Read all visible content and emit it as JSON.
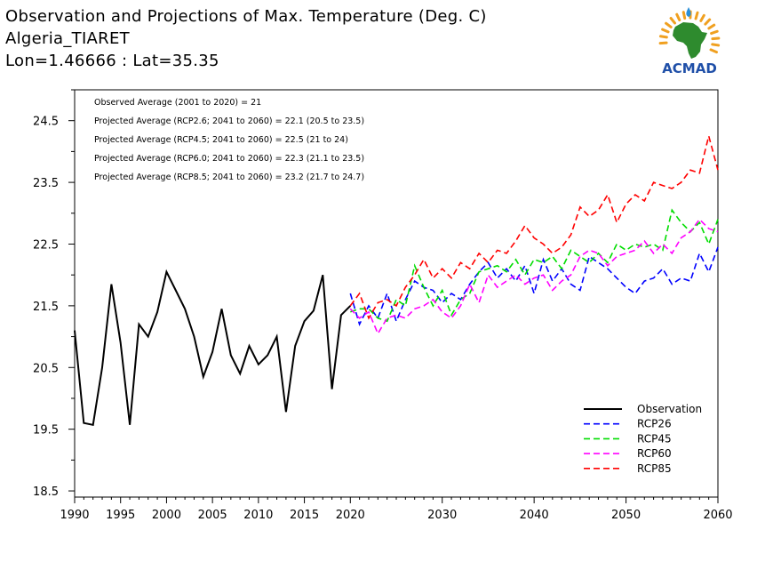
{
  "title": {
    "line1": "Observation and Projections of Max. Temperature (Deg. C)",
    "line2": "Algeria_TIARET",
    "line3": "Lon=1.46666 : Lat=35.35"
  },
  "logo": {
    "text": "ACMAD",
    "colors": {
      "africa": "#2e8b2e",
      "text": "#1f4fa8",
      "rays": "#f0a020",
      "drop": "#2a8fd8"
    }
  },
  "annotations": [
    "Observed Average (2001 to 2020) = 21",
    "Projected Average (RCP2.6; 2041 to 2060) = 22.1 (20.5 to 23.5)",
    "Projected Average (RCP4.5; 2041 to 2060) = 22.5 (21 to 24)",
    "Projected Average (RCP6.0; 2041 to 2060) = 22.3 (21.1 to 23.5)",
    "Projected Average (RCP8.5; 2041 to 2060) = 23.2 (21.7 to 24.7)"
  ],
  "chart_data": {
    "type": "line",
    "title": "Observation and Projections of Max. Temperature (Deg. C)",
    "xlabel": "",
    "ylabel": "",
    "xlim": [
      1990,
      2060
    ],
    "ylim": [
      18.4,
      25.0
    ],
    "x_ticks": [
      1990,
      1995,
      2000,
      2005,
      2010,
      2015,
      2020,
      2030,
      2040,
      2050,
      2060
    ],
    "y_ticks": [
      18.5,
      19.5,
      20.5,
      21.5,
      22.5,
      23.5,
      24.5
    ],
    "x_tick_labels": [
      "1990",
      "1995",
      "2000",
      "2005",
      "2010",
      "2015",
      "2020",
      "2030",
      "2040",
      "2050",
      "2060"
    ],
    "y_tick_labels": [
      "18.5",
      "19.5",
      "20.5",
      "21.5",
      "22.5",
      "23.5",
      "24.5"
    ],
    "legend_position": "bottom-right",
    "grid": false,
    "series": [
      {
        "name": "Observation",
        "color": "#000000",
        "dash": "solid",
        "x": [
          1990,
          1991,
          1992,
          1993,
          1994,
          1995,
          1996,
          1997,
          1998,
          1999,
          2000,
          2001,
          2002,
          2003,
          2004,
          2005,
          2006,
          2007,
          2008,
          2009,
          2010,
          2011,
          2012,
          2013,
          2014,
          2015,
          2016,
          2017,
          2018,
          2019,
          2020
        ],
        "y": [
          21.1,
          19.6,
          19.57,
          20.5,
          21.85,
          20.9,
          19.57,
          21.2,
          21.0,
          21.4,
          22.05,
          21.75,
          21.45,
          21.0,
          20.35,
          20.75,
          21.45,
          20.7,
          20.4,
          20.85,
          20.55,
          20.7,
          21.0,
          19.78,
          20.85,
          21.25,
          21.42,
          22.0,
          20.15,
          21.35,
          21.5
        ]
      },
      {
        "name": "RCP26",
        "color": "#0000ff",
        "dash": "dashed",
        "x": [
          2020,
          2021,
          2022,
          2023,
          2024,
          2025,
          2026,
          2027,
          2028,
          2029,
          2030,
          2031,
          2032,
          2033,
          2034,
          2035,
          2036,
          2037,
          2038,
          2039,
          2040,
          2041,
          2042,
          2043,
          2044,
          2045,
          2046,
          2047,
          2048,
          2049,
          2050,
          2051,
          2052,
          2053,
          2054,
          2055,
          2056,
          2057,
          2058,
          2059,
          2060
        ],
        "y": [
          21.7,
          21.2,
          21.5,
          21.3,
          21.7,
          21.25,
          21.6,
          21.9,
          21.8,
          21.75,
          21.55,
          21.7,
          21.6,
          21.85,
          22.05,
          22.2,
          21.95,
          22.1,
          21.9,
          22.15,
          21.7,
          22.25,
          21.9,
          22.1,
          21.85,
          21.75,
          22.3,
          22.2,
          22.1,
          21.95,
          21.8,
          21.7,
          21.9,
          21.95,
          22.1,
          21.85,
          21.95,
          21.9,
          22.35,
          22.05,
          22.45
        ]
      },
      {
        "name": "RCP45",
        "color": "#00dd00",
        "dash": "dashed",
        "x": [
          2020,
          2021,
          2022,
          2023,
          2024,
          2025,
          2026,
          2027,
          2028,
          2029,
          2030,
          2031,
          2032,
          2033,
          2034,
          2035,
          2036,
          2037,
          2038,
          2039,
          2040,
          2041,
          2042,
          2043,
          2044,
          2045,
          2046,
          2047,
          2048,
          2049,
          2050,
          2051,
          2052,
          2053,
          2054,
          2055,
          2056,
          2057,
          2058,
          2059,
          2060
        ],
        "y": [
          21.4,
          21.45,
          21.45,
          21.3,
          21.25,
          21.6,
          21.5,
          22.15,
          21.8,
          21.5,
          21.75,
          21.35,
          21.6,
          21.7,
          22.05,
          22.1,
          22.15,
          22.05,
          22.25,
          22.0,
          22.25,
          22.2,
          22.3,
          22.1,
          22.4,
          22.3,
          22.2,
          22.35,
          22.2,
          22.5,
          22.4,
          22.5,
          22.45,
          22.5,
          22.4,
          23.05,
          22.85,
          22.7,
          22.85,
          22.5,
          22.9
        ]
      },
      {
        "name": "RCP60",
        "color": "#ff00ff",
        "dash": "dashed",
        "x": [
          2020,
          2021,
          2022,
          2023,
          2024,
          2025,
          2026,
          2027,
          2028,
          2029,
          2030,
          2031,
          2032,
          2033,
          2034,
          2035,
          2036,
          2037,
          2038,
          2039,
          2040,
          2041,
          2042,
          2043,
          2044,
          2045,
          2046,
          2047,
          2048,
          2049,
          2050,
          2051,
          2052,
          2053,
          2054,
          2055,
          2056,
          2057,
          2058,
          2059,
          2060
        ],
        "y": [
          21.45,
          21.3,
          21.4,
          21.05,
          21.3,
          21.35,
          21.3,
          21.45,
          21.5,
          21.6,
          21.4,
          21.3,
          21.5,
          21.85,
          21.55,
          22.0,
          21.8,
          21.9,
          22.0,
          21.85,
          21.95,
          22.0,
          21.75,
          21.9,
          22.0,
          22.3,
          22.4,
          22.35,
          22.15,
          22.3,
          22.35,
          22.4,
          22.55,
          22.35,
          22.5,
          22.35,
          22.6,
          22.7,
          22.9,
          22.75,
          22.7
        ]
      },
      {
        "name": "RCP85",
        "color": "#ff0000",
        "dash": "dashed",
        "x": [
          2020,
          2021,
          2022,
          2023,
          2024,
          2025,
          2026,
          2027,
          2028,
          2029,
          2030,
          2031,
          2032,
          2033,
          2034,
          2035,
          2036,
          2037,
          2038,
          2039,
          2040,
          2041,
          2042,
          2043,
          2044,
          2045,
          2046,
          2047,
          2048,
          2049,
          2050,
          2051,
          2052,
          2053,
          2054,
          2055,
          2056,
          2057,
          2058,
          2059,
          2060
        ],
        "y": [
          21.5,
          21.7,
          21.3,
          21.55,
          21.6,
          21.5,
          21.8,
          22.0,
          22.25,
          21.95,
          22.1,
          21.95,
          22.2,
          22.1,
          22.35,
          22.2,
          22.4,
          22.35,
          22.55,
          22.8,
          22.6,
          22.5,
          22.35,
          22.45,
          22.65,
          23.1,
          22.95,
          23.05,
          23.3,
          22.85,
          23.15,
          23.3,
          23.2,
          23.5,
          23.45,
          23.4,
          23.5,
          23.7,
          23.65,
          24.25,
          23.7
        ]
      }
    ]
  }
}
